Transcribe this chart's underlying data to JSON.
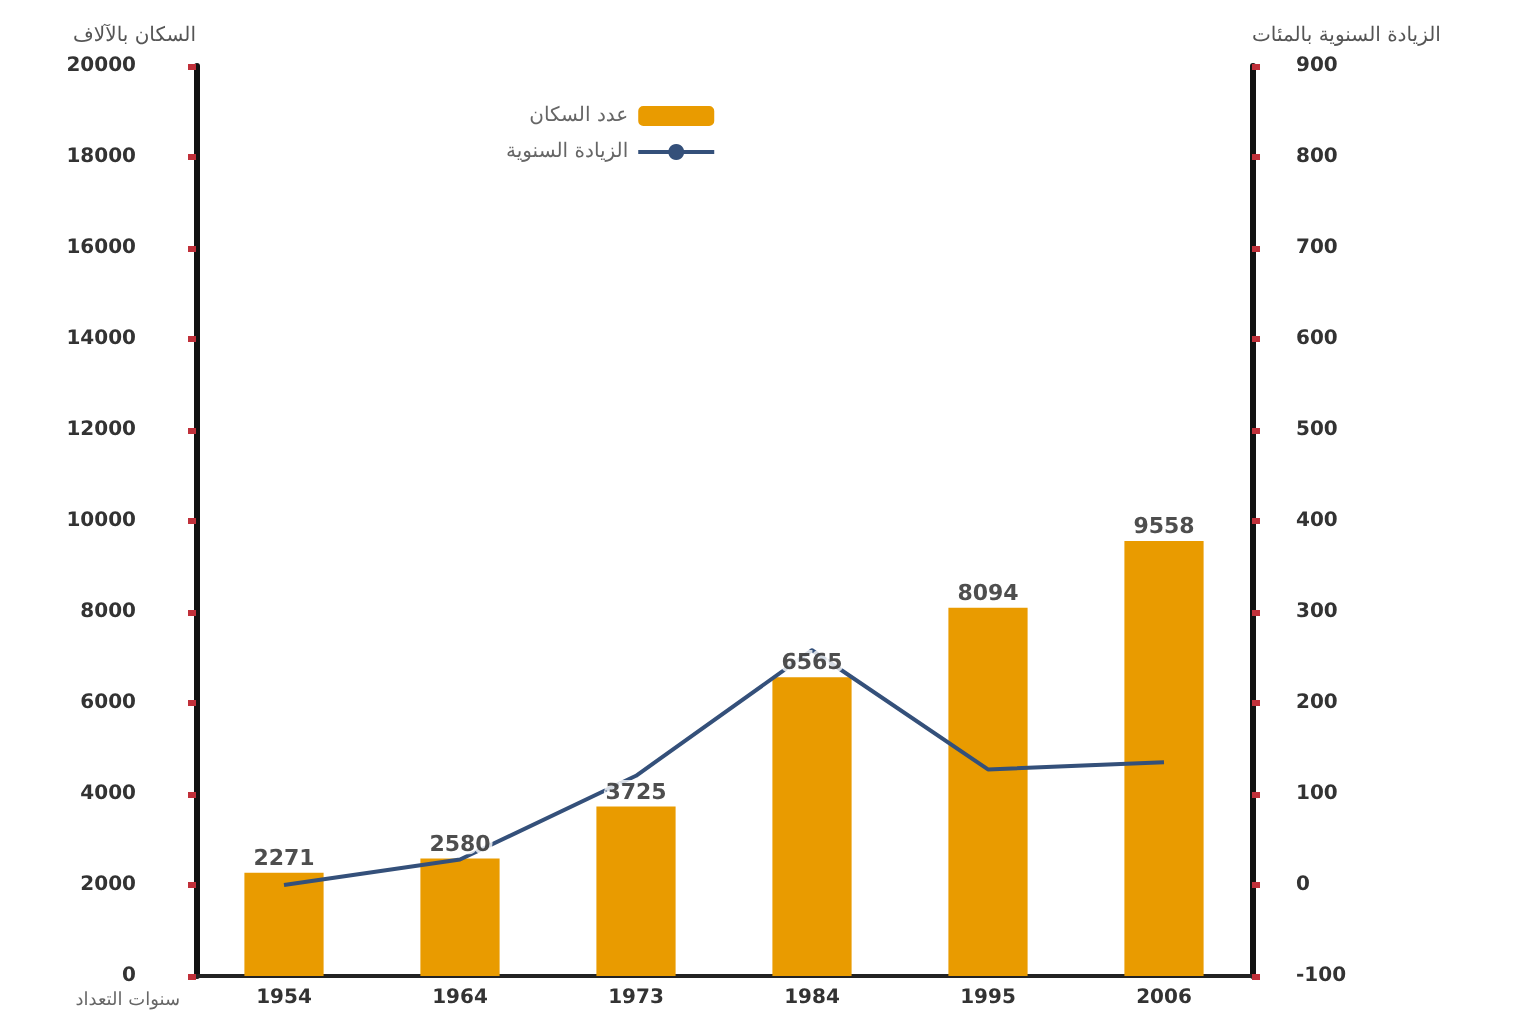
{
  "chart_data": {
    "type": "bar",
    "categories": [
      "1954",
      "1964",
      "1973",
      "1984",
      "1995",
      "2006"
    ],
    "xlabel": "سنوات التعداد",
    "ylabel": "السكان بالآلاف",
    "y2label": "الزيادة السنوية بالمئات",
    "series": [
      {
        "name": "عدد السكان",
        "color": "#e99b00",
        "values": [
          2271,
          2580,
          3725,
          6565,
          8094,
          9558
        ],
        "value_labels": [
          "2271",
          "2580",
          "3725",
          "6565",
          "8094",
          "9558"
        ]
      },
      {
        "name": "الزيادة السنوية",
        "type": "line",
        "axis": "y2",
        "color": "#34507a",
        "values": [
          0,
          28,
          120,
          258,
          127,
          135
        ]
      }
    ],
    "ylim": [
      0,
      20000
    ],
    "yticks": [
      0,
      2000,
      4000,
      6000,
      8000,
      10000,
      12000,
      14000,
      16000,
      18000,
      20000
    ],
    "y2lim": [
      -100,
      900
    ],
    "y2ticks": [
      -100,
      0,
      100,
      200,
      300,
      400,
      500,
      600,
      700,
      800,
      900
    ],
    "legend": "top",
    "grid": false,
    "marker": "none"
  }
}
